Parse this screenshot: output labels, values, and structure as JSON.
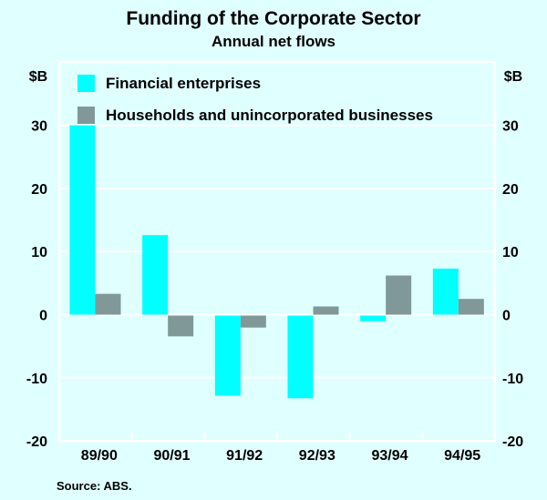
{
  "chart_data": {
    "type": "bar",
    "title": "Funding of the Corporate Sector",
    "subtitle": "Annual net flows",
    "ylabel_left": "$B",
    "ylabel_right": "$B",
    "xlabel": "",
    "categories": [
      "89/90",
      "90/91",
      "91/92",
      "92/93",
      "93/94",
      "94/95"
    ],
    "series": [
      {
        "name": "Financial enterprises",
        "color": "#00ffff",
        "values": [
          30.0,
          12.6,
          -12.7,
          -13.1,
          -0.9,
          7.3
        ]
      },
      {
        "name": "Households and unincorporated businesses",
        "color": "#809898",
        "values": [
          3.3,
          -3.3,
          -1.9,
          1.3,
          6.2,
          2.5
        ]
      }
    ],
    "ylim": [
      -20,
      40
    ],
    "yticks": [
      -20,
      -10,
      0,
      10,
      20,
      30
    ],
    "ytick_labels": [
      "-20",
      "-10",
      "0",
      "10",
      "20",
      "30"
    ],
    "grid": true,
    "legend_position": "top-left",
    "source": "Source: ABS."
  }
}
